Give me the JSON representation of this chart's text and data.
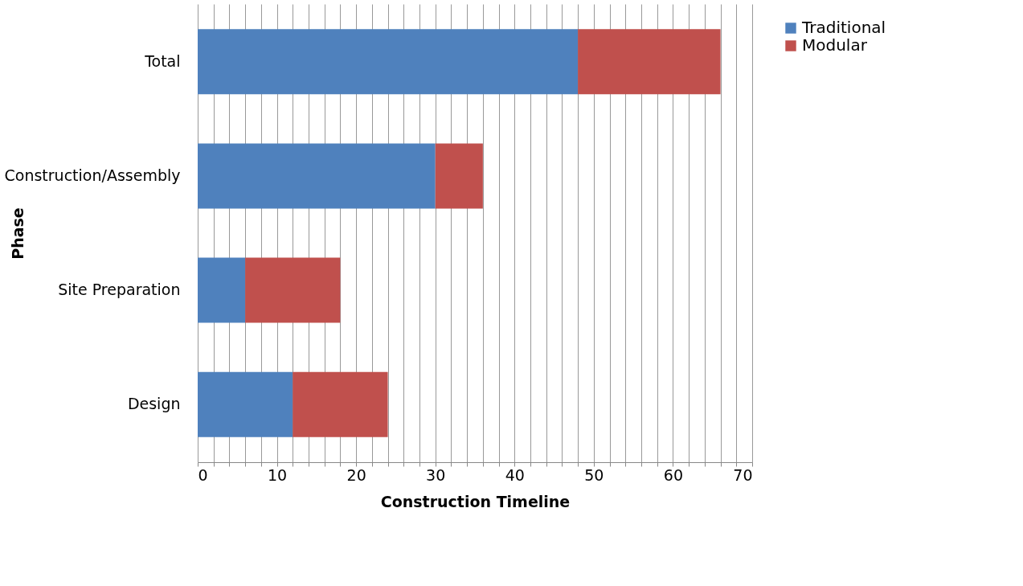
{
  "chart_data": {
    "type": "bar",
    "orientation": "horizontal",
    "stacked": true,
    "xlabel": "Construction Timeline",
    "ylabel": "Phase",
    "categories": [
      "Total",
      "Construction/Assembly",
      "Site Preparation",
      "Design"
    ],
    "series": [
      {
        "name": "Traditional",
        "color": "#4f81bd",
        "values": [
          48,
          30,
          6,
          12
        ]
      },
      {
        "name": "Modular",
        "color": "#c0504d",
        "values": [
          18,
          6,
          12,
          12
        ]
      }
    ],
    "xlim": [
      0,
      70
    ],
    "xticks": [
      0,
      {
        "value": 2,
        "label": null
      },
      {
        "value": 4,
        "label": null
      },
      {
        "value": 6,
        "label": null
      },
      {
        "value": 8,
        "label": null
      },
      10,
      {
        "value": 12,
        "label": null
      },
      {
        "value": 14,
        "label": null
      },
      {
        "value": 16,
        "label": null
      },
      {
        "value": 18,
        "label": null
      },
      20,
      {
        "value": 22,
        "label": null
      },
      {
        "value": 24,
        "label": null
      },
      {
        "value": 26,
        "label": null
      },
      {
        "value": 28,
        "label": null
      },
      30,
      {
        "value": 32,
        "label": null
      },
      {
        "value": 34,
        "label": null
      },
      {
        "value": 36,
        "label": null
      },
      {
        "value": 38,
        "label": null
      },
      40,
      {
        "value": 42,
        "label": null
      },
      {
        "value": 44,
        "label": null
      },
      {
        "value": 46,
        "label": null
      },
      {
        "value": 48,
        "label": null
      },
      50,
      {
        "value": 52,
        "label": null
      },
      {
        "value": 54,
        "label": null
      },
      {
        "value": 56,
        "label": null
      },
      {
        "value": 58,
        "label": null
      },
      60,
      {
        "value": 62,
        "label": null
      },
      {
        "value": 64,
        "label": null
      },
      {
        "value": 66,
        "label": null
      },
      {
        "value": 68,
        "label": null
      },
      70
    ],
    "grid": "x",
    "legend": "right"
  }
}
